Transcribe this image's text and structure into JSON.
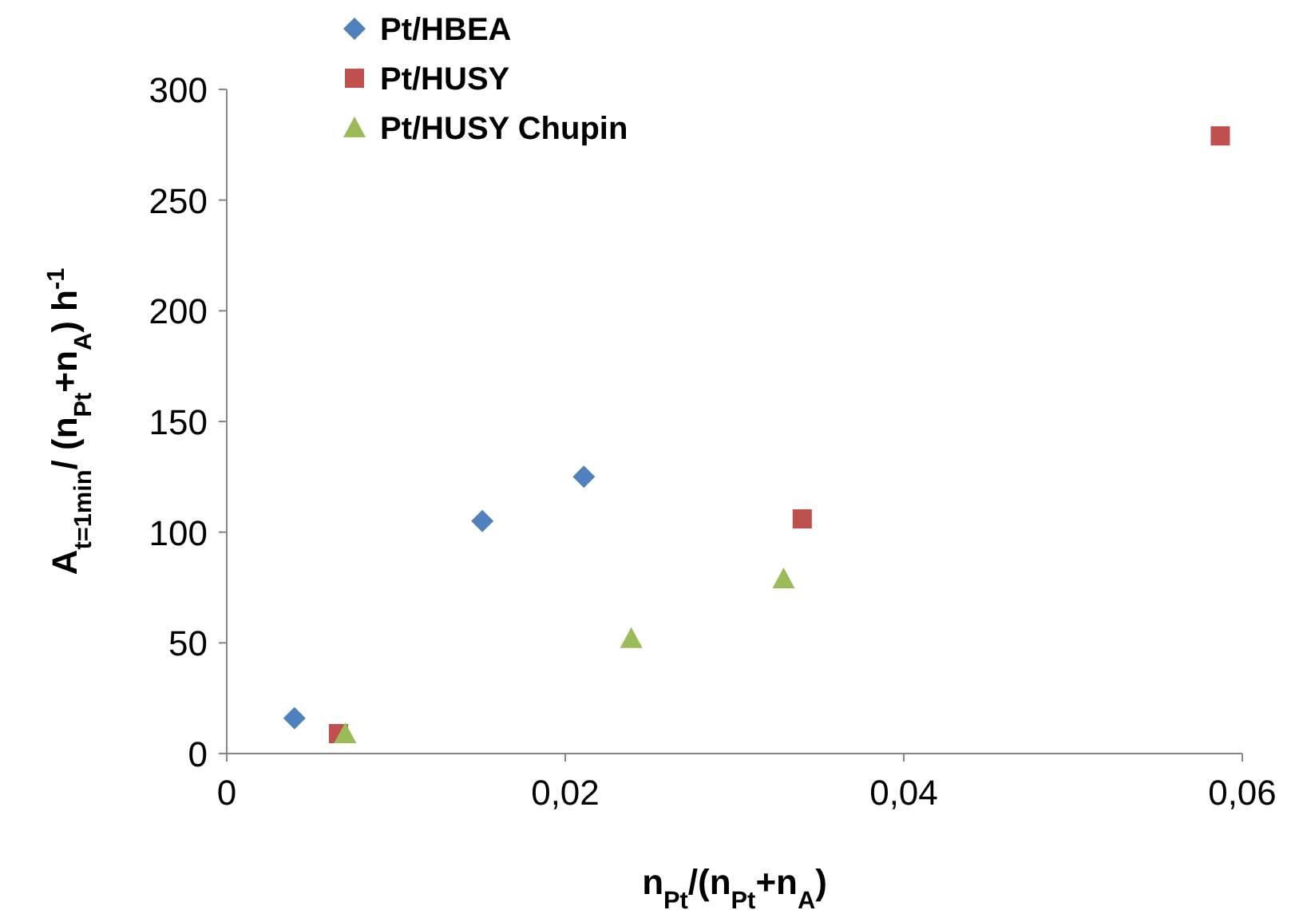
{
  "chart_data": {
    "type": "scatter",
    "xlabel": "n$_{Pt}$/(n$_{Pt}$+n$_{A}$)",
    "ylabel": "A$_{t=1min}$/ (n$_{Pt}$+n$_{A}$) h$^{-1}$",
    "xlim": [
      0,
      0.06
    ],
    "ylim": [
      0,
      300
    ],
    "xticks": [
      0,
      {
        "value": 0.02,
        "label": "0,02"
      },
      {
        "value": 0.04,
        "label": "0,04"
      },
      {
        "value": 0.06,
        "label": "0,06"
      }
    ],
    "yticks": [
      0,
      50,
      100,
      150,
      200,
      250,
      300
    ],
    "grid": false,
    "legend": "top left",
    "series": [
      {
        "name": "Pt/HBEA",
        "color": "#4f81bd",
        "marker": "diamond",
        "x": [
          0.004,
          0.0151,
          0.0211
        ],
        "values": [
          16,
          105,
          125
        ]
      },
      {
        "name": "Pt/HUSY",
        "color": "#c0504d",
        "marker": "square",
        "x": [
          0.0066,
          0.034,
          0.0587
        ],
        "values": [
          9,
          106,
          279
        ]
      },
      {
        "name": "Pt/HUSY Chupin",
        "color": "#9bbb59",
        "marker": "triangle",
        "x": [
          0.007,
          0.0239,
          0.0329
        ],
        "values": [
          9,
          52,
          79
        ]
      }
    ]
  }
}
